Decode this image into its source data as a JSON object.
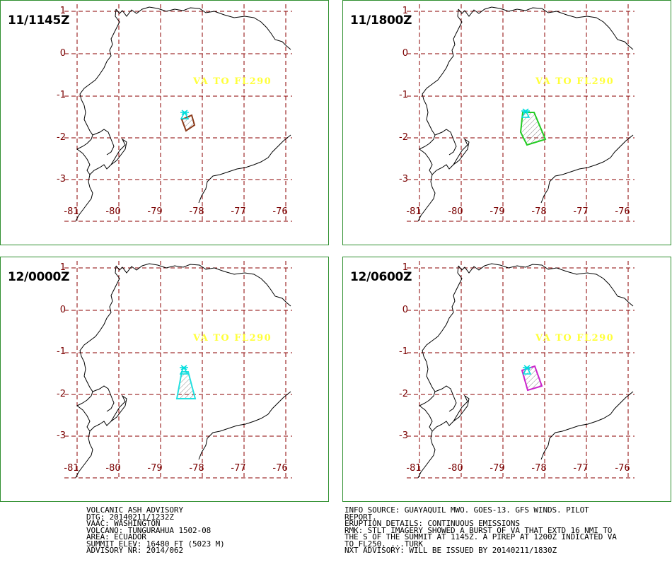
{
  "panels": [
    {
      "time": "11/1145Z",
      "va_label": "VA TO FL290",
      "ash_color": "#8b3a1a"
    },
    {
      "time": "11/1800Z",
      "va_label": "VA TO FL290",
      "ash_color": "#22cc22"
    },
    {
      "time": "12/0000Z",
      "va_label": "VA TO FL290",
      "ash_color": "#22e0e0"
    },
    {
      "time": "12/0600Z",
      "va_label": "VA TO FL290",
      "ash_color": "#cc22cc"
    }
  ],
  "latitude_labels": [
    "1",
    "0",
    "-1",
    "-2",
    "-3"
  ],
  "longitude_labels": [
    "-81",
    "-80",
    "-79",
    "-78",
    "-77",
    "-76"
  ],
  "colors": {
    "grid": "#8b0000",
    "frame": "#2f8f2f",
    "coastline": "#000000",
    "volcano_marker": "#00dddd",
    "va_text": "#ffff3a"
  },
  "advisory_left": [
    "VOLCANIC ASH ADVISORY",
    "DTG: 20140211/1232Z",
    "VAAC: WASHINGTON",
    "VOLCANO: TUNGURAHUA 1502-08",
    "AREA: ECUADOR",
    "SUMMIT ELEV: 16480 FT (5023 M)",
    "ADVISORY NR: 2014/062"
  ],
  "advisory_right": [
    "INFO SOURCE: GUAYAQUIL MWO. GOES-13. GFS WINDS. PILOT",
    "REPORT.",
    "ERUPTION DETAILS: CONTINUOUS EMISSIONS",
    "RMK: STLT IMAGERY SHOWED A BURST OF VA THAT EXTD 16 NMI TO",
    "THE S OF THE SUMMIT AT 1145Z. A PIREP AT 1200Z INDICATED VA",
    "TO FL250. ...TURK",
    "NXT ADVISORY: WILL BE ISSUED BY 20140211/1830Z"
  ]
}
